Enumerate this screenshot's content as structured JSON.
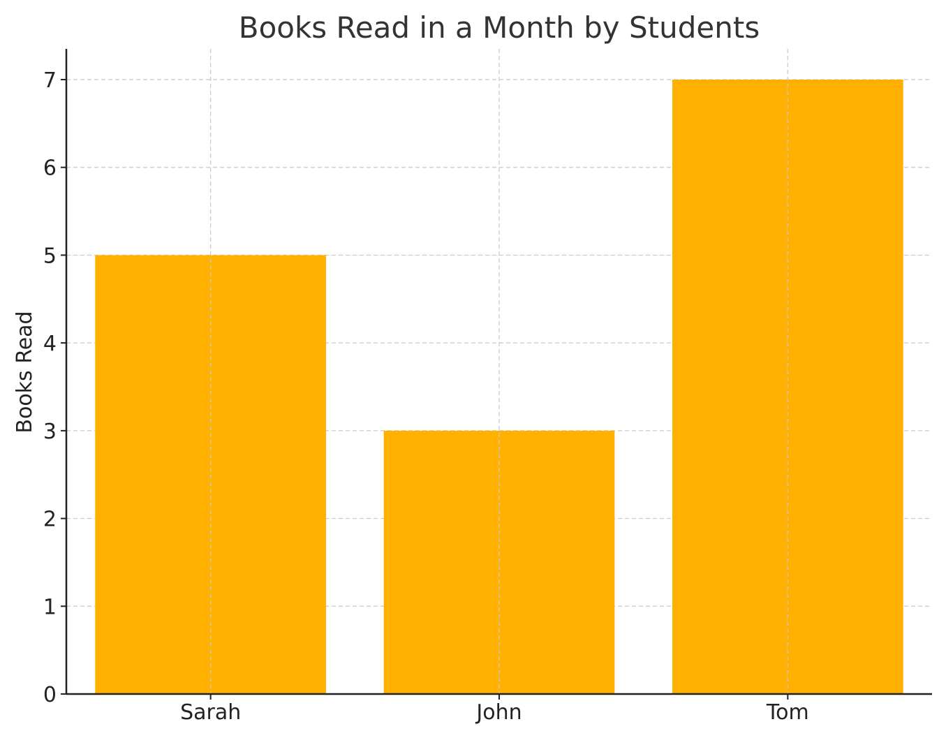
{
  "chart_data": {
    "type": "bar",
    "title": "Books Read in a Month by Students",
    "xlabel": "",
    "ylabel": "Books Read",
    "categories": [
      "Sarah",
      "John",
      "Tom"
    ],
    "values": [
      5,
      3,
      7
    ],
    "ylim": [
      0,
      7.35
    ],
    "yticks": [
      "0",
      "1",
      "2",
      "3",
      "4",
      "5",
      "6",
      "7"
    ],
    "grid": true,
    "legend": "none",
    "colors": {
      "bar": "#FFB000"
    }
  }
}
